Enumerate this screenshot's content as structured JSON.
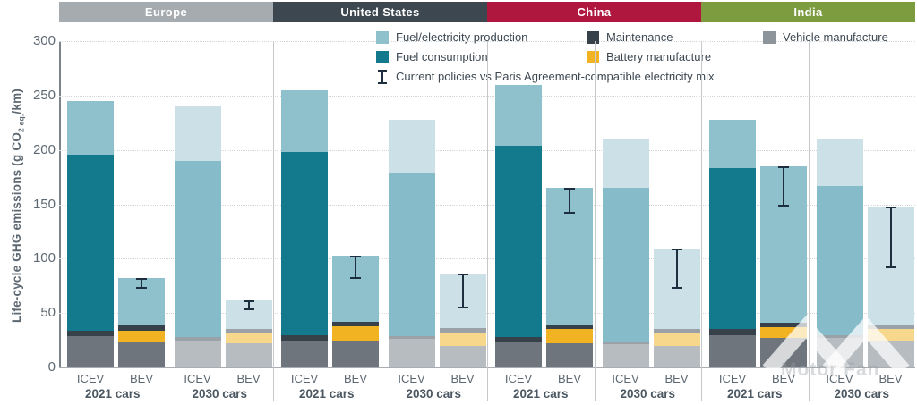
{
  "y_axis": {
    "title_pre": "Life-cycle GHG emissions (g CO",
    "title_sub": "2 eq.",
    "title_post": "/km)"
  },
  "legend": {
    "items": [
      {
        "id": "fuel_electricity_production",
        "label": "Fuel/electricity production",
        "color": "#8ec1cc",
        "col": 1,
        "row": 1
      },
      {
        "id": "maintenance",
        "label": "Maintenance",
        "color": "#37414a",
        "col": 2,
        "row": 1
      },
      {
        "id": "vehicle_manufacture",
        "label": "Vehicle manufacture",
        "color": "#8d949a",
        "col": 3,
        "row": 1
      },
      {
        "id": "fuel_consumption",
        "label": "Fuel consumption",
        "color": "#13798c",
        "col": 1,
        "row": 2
      },
      {
        "id": "battery_manufacture",
        "label": "Battery manufacture",
        "color": "#f2b322",
        "col": 2,
        "row": 2
      }
    ],
    "error_label": "Current policies vs Paris Agreement-compatible electricity mix",
    "error_color": "#1d2f3f"
  },
  "watermark": {
    "text": "Motor Fan"
  },
  "chart_data": {
    "type": "bar",
    "stacked": true,
    "ylabel": "Life-cycle GHG emissions (g CO2 eq./km)",
    "ylim": [
      0,
      300
    ],
    "yticks": [
      0,
      50,
      100,
      150,
      200,
      250,
      300
    ],
    "grid": "dotted horizontal at each 50",
    "legend_position": "top",
    "stack_order": [
      "vehicle_manufacture",
      "battery_manufacture",
      "maintenance",
      "fuel_consumption",
      "fuel_electricity_production"
    ],
    "error_bar_meaning": "Current policies vs Paris Agreement-compatible electricity mix",
    "palettes": {
      "2021": {
        "vehicle_manufacture": "#6e757c",
        "battery_manufacture": "#f2b322",
        "maintenance": "#37414a",
        "fuel_consumption": "#13798c",
        "fuel_electricity_production": "#8ec1cc"
      },
      "2030": {
        "vehicle_manufacture": "#b7bcc0",
        "battery_manufacture": "#f7d78b",
        "maintenance": "#9aa1a7",
        "fuel_consumption": "#86bcca",
        "fuel_electricity_production": "#cbe0e7"
      }
    },
    "regions": [
      {
        "name": "Europe",
        "header_color": "#a6abb0",
        "groups": [
          {
            "label": "2021 cars",
            "palette": "2021",
            "bars": [
              {
                "label": "ICEV",
                "total": 245,
                "segments": {
                  "vehicle_manufacture": 29,
                  "maintenance": 5,
                  "fuel_consumption": 162,
                  "fuel_electricity_production": 49
                }
              },
              {
                "label": "BEV",
                "total": 82,
                "segments": {
                  "vehicle_manufacture": 24,
                  "battery_manufacture": 10,
                  "maintenance": 5,
                  "fuel_electricity_production": 43
                },
                "error_bar": {
                  "low": 72,
                  "high": 82
                }
              }
            ]
          },
          {
            "label": "2030 cars",
            "palette": "2030",
            "bars": [
              {
                "label": "ICEV",
                "total": 240,
                "segments": {
                  "vehicle_manufacture": 25,
                  "maintenance": 3,
                  "fuel_consumption": 162,
                  "fuel_electricity_production": 50
                }
              },
              {
                "label": "BEV",
                "total": 62,
                "segments": {
                  "vehicle_manufacture": 22,
                  "battery_manufacture": 10,
                  "maintenance": 3,
                  "fuel_electricity_production": 27
                },
                "error_bar": {
                  "low": 53,
                  "high": 62
                }
              }
            ]
          }
        ]
      },
      {
        "name": "United States",
        "header_color": "#3c4750",
        "groups": [
          {
            "label": "2021 cars",
            "palette": "2021",
            "bars": [
              {
                "label": "ICEV",
                "total": 255,
                "segments": {
                  "vehicle_manufacture": 25,
                  "maintenance": 5,
                  "fuel_consumption": 168,
                  "fuel_electricity_production": 57
                }
              },
              {
                "label": "BEV",
                "total": 103,
                "segments": {
                  "vehicle_manufacture": 25,
                  "battery_manufacture": 13,
                  "maintenance": 4,
                  "fuel_electricity_production": 61
                },
                "error_bar": {
                  "low": 81,
                  "high": 103
                }
              }
            ]
          },
          {
            "label": "2030 cars",
            "palette": "2030",
            "bars": [
              {
                "label": "ICEV",
                "total": 228,
                "segments": {
                  "vehicle_manufacture": 26,
                  "maintenance": 3,
                  "fuel_consumption": 149,
                  "fuel_electricity_production": 50
                }
              },
              {
                "label": "BEV",
                "total": 86,
                "segments": {
                  "vehicle_manufacture": 20,
                  "battery_manufacture": 12,
                  "maintenance": 4,
                  "fuel_electricity_production": 50
                },
                "error_bar": {
                  "low": 54,
                  "high": 86
                }
              }
            ]
          }
        ]
      },
      {
        "name": "China",
        "header_color": "#b0173f",
        "groups": [
          {
            "label": "2021 cars",
            "palette": "2021",
            "bars": [
              {
                "label": "ICEV",
                "total": 260,
                "segments": {
                  "vehicle_manufacture": 23,
                  "maintenance": 5,
                  "fuel_consumption": 176,
                  "fuel_electricity_production": 56
                }
              },
              {
                "label": "BEV",
                "total": 165,
                "segments": {
                  "vehicle_manufacture": 22,
                  "battery_manufacture": 13,
                  "maintenance": 4,
                  "fuel_electricity_production": 126
                },
                "error_bar": {
                  "low": 141,
                  "high": 165
                }
              }
            ]
          },
          {
            "label": "2030 cars",
            "palette": "2030",
            "bars": [
              {
                "label": "ICEV",
                "total": 210,
                "segments": {
                  "vehicle_manufacture": 21,
                  "maintenance": 3,
                  "fuel_consumption": 141,
                  "fuel_electricity_production": 45
                }
              },
              {
                "label": "BEV",
                "total": 109,
                "segments": {
                  "vehicle_manufacture": 20,
                  "battery_manufacture": 11,
                  "maintenance": 4,
                  "fuel_electricity_production": 74
                },
                "error_bar": {
                  "low": 72,
                  "high": 109
                }
              }
            ]
          }
        ]
      },
      {
        "name": "India",
        "header_color": "#7d9c40",
        "groups": [
          {
            "label": "2021 cars",
            "palette": "2021",
            "bars": [
              {
                "label": "ICEV",
                "total": 228,
                "segments": {
                  "vehicle_manufacture": 30,
                  "maintenance": 5,
                  "fuel_consumption": 148,
                  "fuel_electricity_production": 45
                }
              },
              {
                "label": "BEV",
                "total": 185,
                "segments": {
                  "vehicle_manufacture": 27,
                  "battery_manufacture": 10,
                  "maintenance": 4,
                  "fuel_electricity_production": 144
                },
                "error_bar": {
                  "low": 148,
                  "high": 185
                }
              }
            ]
          },
          {
            "label": "2030 cars",
            "palette": "2030",
            "bars": [
              {
                "label": "ICEV",
                "total": 210,
                "segments": {
                  "vehicle_manufacture": 27,
                  "maintenance": 3,
                  "fuel_consumption": 137,
                  "fuel_electricity_production": 43
                }
              },
              {
                "label": "BEV",
                "total": 148,
                "segments": {
                  "vehicle_manufacture": 25,
                  "battery_manufacture": 10,
                  "maintenance": 4,
                  "fuel_electricity_production": 109
                },
                "error_bar": {
                  "low": 91,
                  "high": 148
                }
              }
            ]
          }
        ]
      }
    ]
  }
}
